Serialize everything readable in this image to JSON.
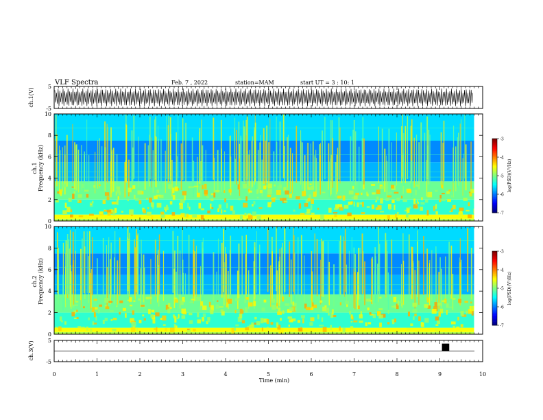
{
  "header": {
    "title": "VLF Spectra",
    "date": "Feb. 7 , 2022",
    "station": "station=MAM",
    "start": "start UT = 3 : 10: 1"
  },
  "colors": {
    "spectrogram_low": "#00007f",
    "spectrogram_mid": "#00ff80",
    "spectrogram_high": "#ff0000",
    "marker_block": "#000000"
  },
  "chart_data": [
    {
      "type": "line",
      "name": "ch1-waveform",
      "ylabel": "ch.1(V)",
      "ylim": [
        -5,
        5
      ],
      "yticks": [
        "5",
        "-5"
      ],
      "x": [
        0,
        10
      ],
      "description_of_signal": "dense oscillation between about -5 and 5 V"
    },
    {
      "type": "heatmap",
      "name": "ch1-spectrogram",
      "ylabel": "ch.1\nFrequency (kHz)",
      "ylim": [
        0,
        10
      ],
      "yticks": [
        "0",
        "2",
        "4",
        "6",
        "8",
        "10"
      ],
      "xlim": [
        0,
        9.8
      ],
      "colorbar": {
        "label": "log(PSD)(V²/Hz)",
        "ticks": [
          "-3",
          "-4",
          "-5",
          "-6",
          "-7"
        ],
        "range": [
          -7,
          -3
        ]
      }
    },
    {
      "type": "heatmap",
      "name": "ch2-spectrogram",
      "ylabel": "ch.2\nFrequency (kHz)",
      "ylim": [
        0,
        10
      ],
      "yticks": [
        "0",
        "2",
        "4",
        "6",
        "8",
        "10"
      ],
      "xlim": [
        0,
        9.8
      ],
      "colorbar": {
        "label": "log(PSD)(V²/Hz)",
        "ticks": [
          "-3",
          "-4",
          "-5",
          "-6",
          "-7"
        ],
        "range": [
          -7,
          -3
        ]
      }
    },
    {
      "type": "line",
      "name": "ch3-signal",
      "ylabel": "ch.3(V)",
      "ylim": [
        -5,
        5
      ],
      "yticks": [
        "5",
        "-5"
      ],
      "baseline": 0,
      "pulse": {
        "x_start": 9.05,
        "x_end": 9.22,
        "y_top": 3.5,
        "y_bottom": 0
      }
    }
  ],
  "xaxis": {
    "label": "Time (min)",
    "ticks": [
      "0",
      "1",
      "2",
      "3",
      "4",
      "5",
      "6",
      "7",
      "8",
      "9",
      "10"
    ],
    "range": [
      0,
      10
    ]
  }
}
